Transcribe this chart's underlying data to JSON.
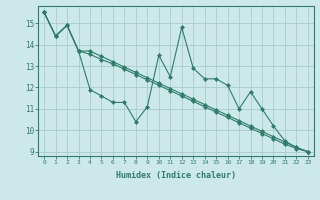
{
  "xlabel": "Humidex (Indice chaleur)",
  "background_color": "#cce8e8",
  "grid_color": "#aacccc",
  "line_color": "#2d7d6b",
  "x": [
    0,
    1,
    2,
    3,
    4,
    5,
    6,
    7,
    8,
    9,
    10,
    11,
    12,
    13,
    14,
    15,
    16,
    17,
    18,
    19,
    20,
    21,
    22,
    23
  ],
  "line1": [
    15.5,
    14.4,
    14.9,
    13.7,
    11.9,
    11.6,
    11.3,
    11.3,
    10.4,
    11.1,
    13.5,
    12.5,
    14.8,
    12.9,
    12.4,
    12.4,
    12.1,
    11.0,
    11.8,
    11.0,
    10.2,
    9.5,
    9.2,
    9.0
  ],
  "line2": [
    15.5,
    14.4,
    14.9,
    13.7,
    13.55,
    13.3,
    13.1,
    12.85,
    12.6,
    12.35,
    12.1,
    11.85,
    11.6,
    11.35,
    11.1,
    10.85,
    10.6,
    10.35,
    10.1,
    9.85,
    9.6,
    9.35,
    9.15,
    9.0
  ],
  "line3": [
    15.5,
    14.4,
    14.9,
    13.7,
    13.7,
    13.45,
    13.2,
    12.95,
    12.7,
    12.45,
    12.2,
    11.95,
    11.7,
    11.45,
    11.2,
    10.95,
    10.7,
    10.45,
    10.2,
    9.95,
    9.7,
    9.45,
    9.2,
    9.0
  ],
  "ylim": [
    8.8,
    15.8
  ],
  "xlim": [
    -0.5,
    23.5
  ],
  "yticks": [
    9,
    10,
    11,
    12,
    13,
    14,
    15
  ],
  "xticks": [
    0,
    1,
    2,
    3,
    4,
    5,
    6,
    7,
    8,
    9,
    10,
    11,
    12,
    13,
    14,
    15,
    16,
    17,
    18,
    19,
    20,
    21,
    22,
    23
  ]
}
